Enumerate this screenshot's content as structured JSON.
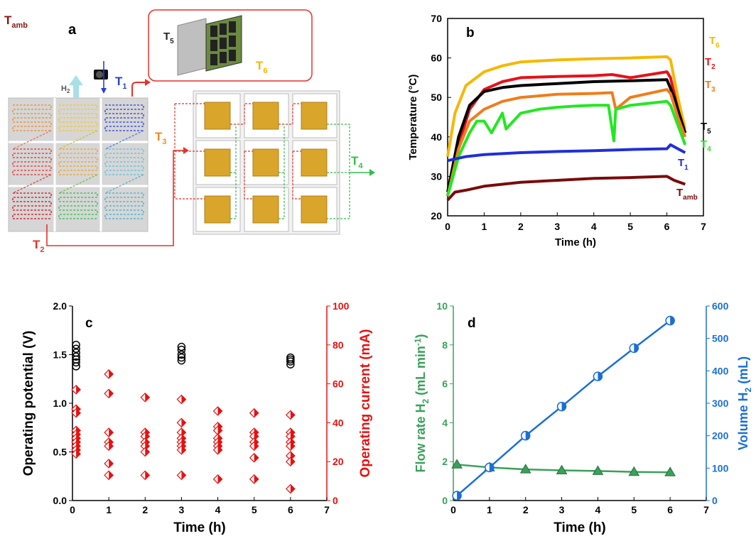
{
  "panel_a": {
    "letter": "a",
    "labels": {
      "t_amb": "T",
      "t_amb_sub": "amb",
      "t1": "T",
      "t1_sub": "1",
      "t2": "T",
      "t2_sub": "2",
      "t3": "T",
      "t3_sub": "3",
      "t4": "T",
      "t4_sub": "4",
      "t5": "T",
      "t5_sub": "5",
      "t6": "T",
      "t6_sub": "6",
      "h2": "H",
      "h2_sub": "2"
    },
    "colors": {
      "red": "#e8312a",
      "orange": "#f08a24",
      "yellow": "#f5c518",
      "green": "#2fbf4a",
      "blue": "#2a3fd6",
      "dark_red": "#8b1414",
      "cyan": "#5bc0de"
    }
  },
  "chart_data": [
    {
      "id": "b",
      "type": "line",
      "letter": "b",
      "xlabel": "Time (h)",
      "ylabel": "Temperature (°C)",
      "xlim": [
        0,
        7
      ],
      "ylim": [
        20,
        70
      ],
      "xticks": [
        0,
        1,
        2,
        3,
        4,
        5,
        6,
        7
      ],
      "yticks": [
        20,
        30,
        40,
        50,
        60,
        70
      ],
      "series": [
        {
          "name": "T6",
          "label_main": "T",
          "label_sub": "6",
          "color": "#f5b800",
          "x": [
            0,
            0.2,
            0.5,
            1,
            1.5,
            2,
            3,
            4,
            5,
            6,
            6.1,
            6.3,
            6.5
          ],
          "y": [
            35,
            46,
            53,
            56.5,
            58,
            59,
            59.5,
            59.8,
            60,
            60.3,
            59.5,
            50,
            42
          ]
        },
        {
          "name": "T2",
          "label_main": "T",
          "label_sub": "2",
          "color": "#e8101a",
          "x": [
            0,
            0.3,
            0.6,
            1,
            1.5,
            2,
            3,
            4,
            4.5,
            5,
            6,
            6.1,
            6.3,
            6.5
          ],
          "y": [
            25,
            38,
            47,
            52,
            54,
            55,
            55.3,
            55.5,
            55.8,
            55,
            56.5,
            55,
            47,
            41
          ]
        },
        {
          "name": "T5",
          "label_main": "T",
          "label_sub": "5",
          "color": "#000000",
          "x": [
            0,
            0.3,
            0.6,
            1,
            1.5,
            2,
            3,
            4,
            5,
            6,
            6.2,
            6.4,
            6.5
          ],
          "y": [
            26,
            40,
            48,
            51.5,
            52.5,
            53,
            53.5,
            54,
            54.2,
            54.5,
            50,
            44,
            41
          ]
        },
        {
          "name": "T3",
          "label_main": "T",
          "label_sub": "3",
          "color": "#f07d1a",
          "x": [
            0,
            0.3,
            0.6,
            1,
            1.5,
            2,
            3,
            4,
            4.5,
            4.6,
            5,
            6,
            6.1,
            6.3,
            6.5
          ],
          "y": [
            25,
            37,
            44,
            47,
            49,
            50,
            50.8,
            51,
            51.2,
            47,
            50,
            52,
            51,
            45,
            40
          ]
        },
        {
          "name": "T4",
          "label_main": "T",
          "label_sub": "4",
          "color": "#22e822",
          "x": [
            0,
            0.3,
            0.6,
            0.8,
            1,
            1.2,
            1.5,
            1.6,
            2,
            2.5,
            3,
            3.5,
            4,
            4.4,
            4.55,
            4.6,
            5,
            5.5,
            6,
            6.1,
            6.3,
            6.5
          ],
          "y": [
            25,
            35,
            41,
            44,
            44,
            41,
            46,
            42,
            46,
            47,
            47.5,
            47.8,
            48,
            48,
            39,
            47,
            48,
            48.5,
            49,
            48,
            43,
            38
          ]
        },
        {
          "name": "T1",
          "label_main": "T",
          "label_sub": "1",
          "color": "#1f2fd8",
          "x": [
            0,
            0.5,
            1,
            2,
            3,
            4,
            5,
            6,
            6.1,
            6.3,
            6.5
          ],
          "y": [
            34,
            35,
            35.5,
            36,
            36.3,
            36.5,
            36.8,
            37,
            38,
            37,
            36
          ]
        },
        {
          "name": "Tamb",
          "label_main": "T",
          "label_sub": "amb",
          "color": "#7a0a0a",
          "x": [
            0,
            0.2,
            0.5,
            1,
            2,
            3,
            4,
            5,
            6,
            6.2,
            6.5
          ],
          "y": [
            24,
            26,
            26.5,
            27.5,
            28.5,
            29,
            29.5,
            29.7,
            30,
            29,
            28
          ]
        }
      ]
    },
    {
      "id": "c",
      "type": "scatter",
      "letter": "c",
      "xlabel": "Time (h)",
      "ylabel_left": "Operating potential (V)",
      "ylabel_right": "Operating current (mA)",
      "xlim": [
        0,
        7
      ],
      "ylim_left": [
        0.0,
        2.0
      ],
      "ylim_right": [
        0,
        100
      ],
      "xticks": [
        0,
        1,
        2,
        3,
        4,
        5,
        6,
        7
      ],
      "yticks_left": [
        "0.0",
        "0.5",
        "1.0",
        "1.5",
        "2.0"
      ],
      "yticks_right": [
        0,
        20,
        40,
        60,
        80,
        100
      ],
      "potential_series": {
        "color": "#000000",
        "x": [
          0.1,
          0.1,
          0.1,
          0.1,
          0.1,
          0.1,
          0.1,
          3,
          3,
          3,
          3,
          3,
          6,
          6,
          6,
          6
        ],
        "y": [
          1.6,
          1.56,
          1.52,
          1.48,
          1.45,
          1.42,
          1.38,
          1.58,
          1.55,
          1.5,
          1.47,
          1.44,
          1.47,
          1.45,
          1.43,
          1.4
        ]
      },
      "current_series": {
        "color": "#e81010",
        "x": [
          0.1,
          0.1,
          0.1,
          0.1,
          0.1,
          0.1,
          0.1,
          0.1,
          0.1,
          0.1,
          1,
          1,
          1,
          1,
          1,
          1,
          1,
          2,
          2,
          2,
          2,
          2,
          2,
          2,
          3,
          3,
          3,
          3,
          3,
          3,
          3,
          3,
          4,
          4,
          4,
          4,
          4,
          4,
          4,
          4,
          5,
          5,
          5,
          5,
          5,
          5,
          5,
          6,
          6,
          6,
          6,
          6,
          6,
          6,
          6
        ],
        "y": [
          57,
          47,
          45,
          36,
          34,
          32,
          30,
          28,
          26,
          24,
          65,
          55,
          35,
          30,
          28,
          19,
          13,
          53,
          35,
          33,
          30,
          28,
          25,
          13,
          52,
          40,
          35,
          32,
          30,
          28,
          26,
          13,
          46,
          38,
          36,
          32,
          30,
          28,
          26,
          11,
          45,
          35,
          33,
          30,
          28,
          22,
          11,
          44,
          35,
          33,
          30,
          28,
          23,
          20,
          6
        ]
      }
    },
    {
      "id": "d",
      "type": "line",
      "letter": "d",
      "xlabel": "Time (h)",
      "ylabel_left_main": "Flow rate H",
      "ylabel_left_sub": "2",
      "ylabel_left_unit": " (mL min",
      "ylabel_left_sup": "-1",
      "ylabel_left_end": ")",
      "ylabel_right_main": "Volume H",
      "ylabel_right_sub": "2",
      "ylabel_right_end": " (mL)",
      "xlim": [
        0,
        7
      ],
      "ylim_left": [
        0,
        10
      ],
      "ylim_right": [
        0,
        600
      ],
      "xticks": [
        0,
        1,
        2,
        3,
        4,
        5,
        6,
        7
      ],
      "yticks_left": [
        0,
        2,
        4,
        6,
        8,
        10
      ],
      "yticks_right": [
        0,
        100,
        200,
        300,
        400,
        500,
        600
      ],
      "flow_series": {
        "color": "#3aa05a",
        "x": [
          0.1,
          1,
          2,
          3,
          4,
          5,
          6
        ],
        "y": [
          1.85,
          1.7,
          1.6,
          1.55,
          1.52,
          1.47,
          1.45
        ]
      },
      "volume_series": {
        "color": "#1a6fd6",
        "x": [
          0.1,
          1,
          2,
          3,
          4,
          5,
          6
        ],
        "y": [
          15,
          102,
          200,
          290,
          383,
          470,
          555
        ]
      }
    }
  ]
}
